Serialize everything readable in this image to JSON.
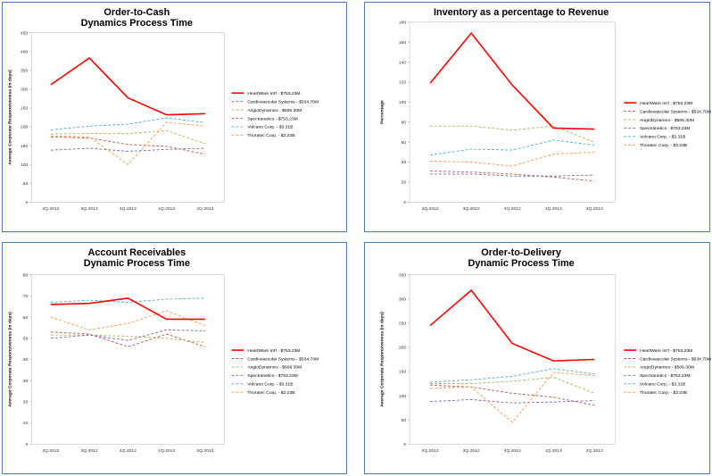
{
  "chart_data": [
    {
      "type": "line",
      "title": [
        "Order-to-Cash",
        "Dynamics Process Time"
      ],
      "xlabel": "",
      "ylabel": "Average Corporate Responsiveness (in days)",
      "categories": [
        "2Q.2012",
        "3Q.2012",
        "4Q.2012",
        "1Q.2013",
        "2Q.2013"
      ],
      "ylim": [
        0,
        450
      ],
      "yticks": [
        "0",
        "50",
        "100",
        "150",
        "200",
        "250",
        "300",
        "350",
        "400",
        "450"
      ],
      "legend_position": "right",
      "series": [
        {
          "name": "HeartWare Int'l - $753.23M",
          "color": "#ff0000",
          "dashed": false,
          "values": [
            312,
            383,
            277,
            232,
            235
          ]
        },
        {
          "name": "Cardiovascular Systems - $534.70M",
          "color": "#c0504d",
          "dashed": true,
          "values": [
            173,
            170,
            153,
            148,
            127
          ]
        },
        {
          "name": "AngioDynamics - $506.30M",
          "color": "#9bbb59",
          "dashed": true,
          "values": [
            181,
            182,
            182,
            190,
            155
          ]
        },
        {
          "name": "Spectranetics - $753.23M",
          "color": "#8064a2",
          "dashed": true,
          "values": [
            138,
            143,
            135,
            140,
            143
          ]
        },
        {
          "name": "Volcano Corp. - $3.31B",
          "color": "#4bacc6",
          "dashed": true,
          "values": [
            192,
            202,
            207,
            224,
            211
          ]
        },
        {
          "name": "Thoratec Corp. - $2.23B",
          "color": "#f79646",
          "dashed": true,
          "values": [
            176,
            173,
            100,
            212,
            202
          ]
        }
      ]
    },
    {
      "type": "line",
      "title": [
        "Inventory as a percentage to Revenue"
      ],
      "xlabel": "",
      "ylabel": "Percentage",
      "categories": [
        "2Q.2012",
        "3Q.2012",
        "4Q.2012",
        "1Q.2013",
        "2Q.2013"
      ],
      "ylim": [
        0,
        180
      ],
      "yticks": [
        "0",
        "20",
        "40",
        "60",
        "80",
        "100",
        "120",
        "140",
        "160",
        "180"
      ],
      "legend_position": "right",
      "series": [
        {
          "name": "HeartWare Int'l - $753.23M",
          "color": "#ff0000",
          "dashed": false,
          "values": [
            119,
            169,
            117,
            74,
            73
          ]
        },
        {
          "name": "Cardiovascular Systems - $534.70M",
          "color": "#c0504d",
          "dashed": true,
          "values": [
            31,
            30,
            28,
            25,
            21
          ]
        },
        {
          "name": "AngioDynamics - $506.30M",
          "color": "#9bbb59",
          "dashed": true,
          "values": [
            76,
            76,
            72,
            76,
            60
          ]
        },
        {
          "name": "Spectranetics - $753.23M",
          "color": "#8064a2",
          "dashed": true,
          "values": [
            28,
            28,
            26,
            26,
            27
          ]
        },
        {
          "name": "Volcano Corp. - $3.31B",
          "color": "#4bacc6",
          "dashed": true,
          "values": [
            47,
            53,
            52,
            62,
            57
          ]
        },
        {
          "name": "Thoratec Corp. - $2.23B",
          "color": "#f79646",
          "dashed": true,
          "values": [
            41,
            40,
            36,
            48,
            50
          ]
        }
      ]
    },
    {
      "type": "line",
      "title": [
        "Account Receivables",
        "Dynamic Process Time"
      ],
      "xlabel": "",
      "ylabel": "Average Corporate Responsiveness (in days)",
      "categories": [
        "2Q.2012",
        "3Q.2012",
        "4Q.2012",
        "1Q.2013",
        "2Q.2013"
      ],
      "ylim": [
        0,
        80
      ],
      "yticks": [
        "0",
        "10",
        "20",
        "30",
        "40",
        "50",
        "60",
        "70",
        "80"
      ],
      "legend_position": "right",
      "series": [
        {
          "name": "HeartWare Int'l - $753.23M",
          "color": "#ff0000",
          "dashed": false,
          "values": [
            66,
            66.5,
            69,
            59,
            59
          ]
        },
        {
          "name": "Cardiovascular Systems - $534.70M",
          "color": "#c0504d",
          "dashed": true,
          "values": [
            53,
            52,
            46,
            52,
            46
          ]
        },
        {
          "name": "AngioDynamics - $506.30M",
          "color": "#9bbb59",
          "dashed": true,
          "values": [
            51.5,
            51.5,
            51,
            50,
            48
          ]
        },
        {
          "name": "Spectranetics - $753.23M",
          "color": "#8064a2",
          "dashed": true,
          "values": [
            50,
            51.5,
            49,
            54,
            53.5
          ]
        },
        {
          "name": "Volcano Corp. - $3.31B",
          "color": "#4bacc6",
          "dashed": true,
          "values": [
            67,
            68,
            67,
            68.5,
            69
          ]
        },
        {
          "name": "Thoratec Corp. - $2.23B",
          "color": "#f79646",
          "dashed": true,
          "values": [
            60,
            54,
            57,
            63,
            56
          ]
        }
      ]
    },
    {
      "type": "line",
      "title": [
        "Order-to-Delivery",
        "Dynamic Process Time"
      ],
      "xlabel": "",
      "ylabel": "Average Corporate Responsiveness (in days)",
      "categories": [
        "2Q.2012",
        "3Q.2012",
        "4Q.2012",
        "1Q.2013",
        "2Q.2013"
      ],
      "ylim": [
        0,
        350
      ],
      "yticks": [
        "0",
        "50",
        "100",
        "150",
        "200",
        "250",
        "300",
        "350"
      ],
      "legend_position": "right",
      "series": [
        {
          "name": "HeartWare Int'l - $753.23M",
          "color": "#ff0000",
          "dashed": false,
          "values": [
            245,
            318,
            208,
            172,
            175
          ]
        },
        {
          "name": "Cardiovascular Systems - $534.70M",
          "color": "#c0504d",
          "dashed": true,
          "values": [
            122,
            118,
            105,
            97,
            80
          ]
        },
        {
          "name": "AngioDynamics - $506.30M",
          "color": "#9bbb59",
          "dashed": true,
          "values": [
            125,
            125,
            130,
            138,
            105
          ]
        },
        {
          "name": "Spectranetics - $753.23M",
          "color": "#8064a2",
          "dashed": true,
          "values": [
            88,
            92,
            85,
            87,
            90
          ]
        },
        {
          "name": "Volcano Corp. - $3.31B",
          "color": "#4bacc6",
          "dashed": true,
          "values": [
            128,
            133,
            140,
            156,
            145
          ]
        },
        {
          "name": "Thoratec Corp. - $2.23B",
          "color": "#f79646",
          "dashed": true,
          "values": [
            115,
            118,
            45,
            148,
            142
          ]
        }
      ]
    }
  ]
}
